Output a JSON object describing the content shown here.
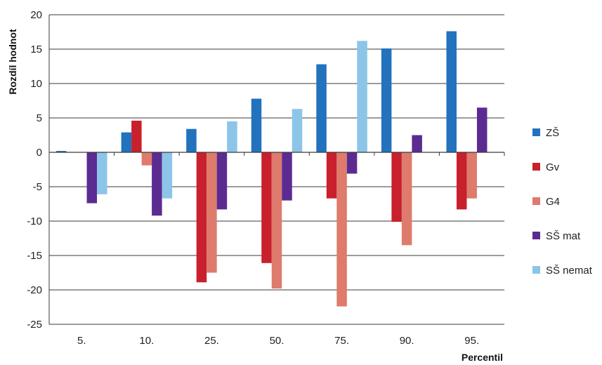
{
  "chart_data": {
    "type": "bar",
    "xlabel": "Percentil",
    "ylabel": "Rozdíl hodnot",
    "ylim": [
      -25,
      20
    ],
    "yticks": [
      20,
      15,
      10,
      5,
      0,
      -5,
      -10,
      -15,
      -20,
      -25
    ],
    "grid": true,
    "legend_position": "right",
    "categories": [
      "5.",
      "10.",
      "25.",
      "50.",
      "75.",
      "90.",
      "95."
    ],
    "series": [
      {
        "name": "ZŠ",
        "color": "#2272BE",
        "values": [
          0.2,
          2.9,
          3.4,
          7.8,
          12.8,
          15.1,
          17.6
        ]
      },
      {
        "name": "Gv",
        "color": "#C8202C",
        "values": [
          null,
          4.6,
          -18.9,
          -16.1,
          -6.7,
          -10.1,
          -8.3
        ]
      },
      {
        "name": "G4",
        "color": "#DE7B6C",
        "values": [
          null,
          -1.9,
          -17.5,
          -19.8,
          -22.4,
          -13.5,
          -6.7
        ]
      },
      {
        "name": "SŠ mat",
        "color": "#5C2B91",
        "values": [
          -7.4,
          -9.2,
          -8.3,
          -7.0,
          -3.1,
          2.5,
          6.5
        ]
      },
      {
        "name": "SŠ nemat",
        "color": "#8CC5E8",
        "values": [
          -6.1,
          -6.7,
          4.5,
          6.3,
          16.2,
          null,
          null
        ]
      }
    ]
  }
}
